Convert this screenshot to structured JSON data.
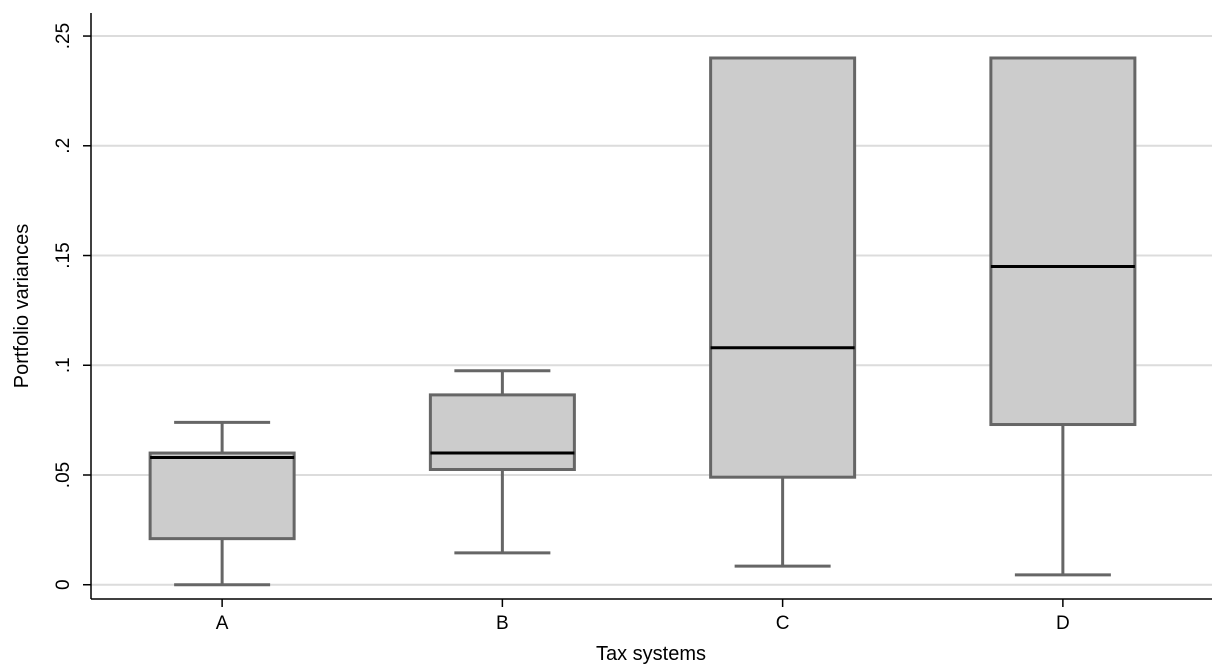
{
  "chart_data": {
    "type": "box",
    "xlabel": "Tax systems",
    "ylabel": "Portfolio variances",
    "ylim": [
      -0.0065,
      0.2605
    ],
    "yticks": [
      {
        "value": 0,
        "label": "0"
      },
      {
        "value": 0.05,
        "label": ".05"
      },
      {
        "value": 0.1,
        "label": ".1"
      },
      {
        "value": 0.15,
        "label": ".15"
      },
      {
        "value": 0.2,
        "label": ".2"
      },
      {
        "value": 0.25,
        "label": ".25"
      }
    ],
    "grid": true,
    "colors": {
      "box_fill": "#cccccc",
      "box_stroke": "#666666",
      "median": "#000000",
      "grid": "#dcdcdc",
      "axis": "#000000"
    },
    "categories": [
      "A",
      "B",
      "C",
      "D"
    ],
    "boxes": [
      {
        "category": "A",
        "whisker_low": 0.0,
        "q1": 0.021,
        "median": 0.058,
        "q3": 0.06,
        "whisker_high": 0.074
      },
      {
        "category": "B",
        "whisker_low": 0.0145,
        "q1": 0.0525,
        "median": 0.06,
        "q3": 0.0865,
        "whisker_high": 0.0975
      },
      {
        "category": "C",
        "whisker_low": 0.0085,
        "q1": 0.049,
        "median": 0.108,
        "q3": 0.24,
        "whisker_high": 0.24
      },
      {
        "category": "D",
        "whisker_low": 0.0045,
        "q1": 0.073,
        "median": 0.145,
        "q3": 0.24,
        "whisker_high": 0.24
      }
    ]
  }
}
